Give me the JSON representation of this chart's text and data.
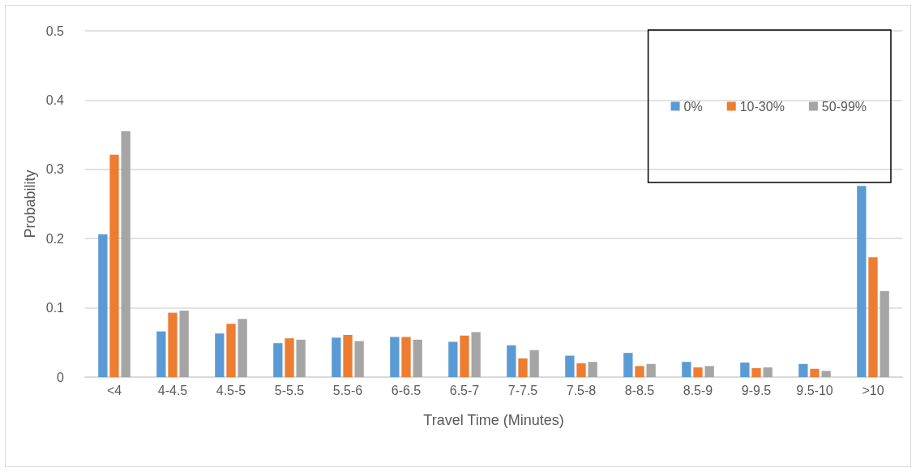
{
  "chart_data": {
    "type": "bar",
    "xlabel": "Travel Time (Minutes)",
    "ylabel": "Probability",
    "categories": [
      "<4",
      "4-4.5",
      "4.5-5",
      "5-5.5",
      "5.5-6",
      "6-6.5",
      "6.5-7",
      "7-7.5",
      "7.5-8",
      "8-8.5",
      "8.5-9",
      "9-9.5",
      "9.5-10",
      ">10"
    ],
    "series": [
      {
        "name": "0%",
        "color": "#5b9bd5",
        "values": [
          0.206,
          0.066,
          0.063,
          0.049,
          0.057,
          0.058,
          0.051,
          0.046,
          0.031,
          0.035,
          0.022,
          0.021,
          0.019,
          0.276
        ]
      },
      {
        "name": "10-30%",
        "color": "#ed7d31",
        "values": [
          0.321,
          0.093,
          0.077,
          0.056,
          0.061,
          0.058,
          0.06,
          0.027,
          0.02,
          0.016,
          0.014,
          0.013,
          0.012,
          0.173
        ]
      },
      {
        "name": "50-99%",
        "color": "#a5a5a5",
        "values": [
          0.355,
          0.096,
          0.084,
          0.054,
          0.052,
          0.054,
          0.065,
          0.039,
          0.022,
          0.019,
          0.016,
          0.014,
          0.009,
          0.124
        ]
      }
    ],
    "ylim": [
      0,
      0.5
    ],
    "yticks": [
      0,
      0.1,
      0.2,
      0.3,
      0.4,
      0.5
    ],
    "grid": "y",
    "legend": "top right"
  }
}
